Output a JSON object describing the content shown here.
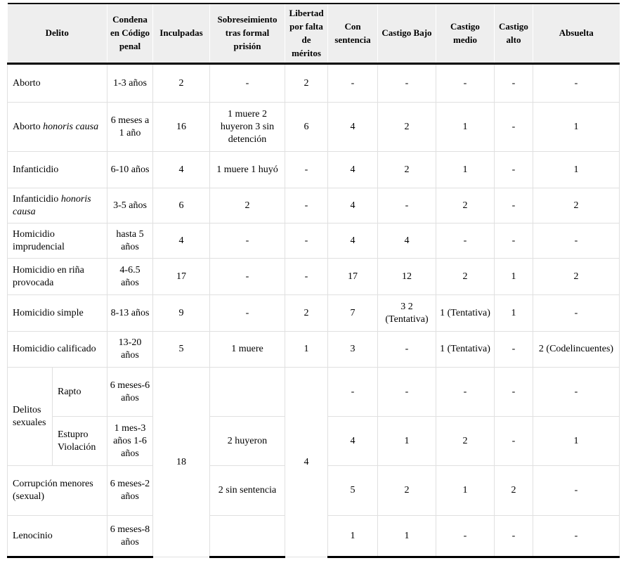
{
  "colors": {
    "header_bg": "#eeeeee",
    "grid_line": "#e0e0e0",
    "rule_heavy": "#000000",
    "text": "#000000"
  },
  "table": {
    "header": [
      {
        "key": "delito",
        "label": "Delito",
        "colspan": 2
      },
      {
        "key": "condena",
        "label": "Condena en Código penal"
      },
      {
        "key": "inculpadas",
        "label": "Inculpadas"
      },
      {
        "key": "sobreseimiento",
        "label": "Sobreseimiento tras formal prisión"
      },
      {
        "key": "libertad",
        "label": "Libertad por falta de méritos"
      },
      {
        "key": "con-sentencia",
        "label": "Con sentencia"
      },
      {
        "key": "castigo-bajo",
        "label": "Castigo Bajo"
      },
      {
        "key": "castigo-medio",
        "label": "Castigo medio"
      },
      {
        "key": "castigo-alto",
        "label": "Castigo alto"
      },
      {
        "key": "absuelta",
        "label": "Absuelta"
      }
    ],
    "rows": [
      {
        "cells": [
          {
            "t": "Aborto",
            "colspan": 2,
            "align": "left",
            "name": "delito-cell"
          },
          {
            "t": "1-3 años"
          },
          {
            "t": "2"
          },
          {
            "t": "-"
          },
          {
            "t": "2"
          },
          {
            "t": "-"
          },
          {
            "t": "-"
          },
          {
            "t": "-"
          },
          {
            "t": "-"
          },
          {
            "t": "-"
          }
        ]
      },
      {
        "cells": [
          {
            "parts": [
              {
                "t": "Aborto "
              },
              {
                "t": "honoris causa",
                "i": 1
              }
            ],
            "colspan": 2,
            "align": "left",
            "name": "delito-cell"
          },
          {
            "t": "6 meses a 1 año"
          },
          {
            "t": "16"
          },
          {
            "t": "1 muere 2 huyeron 3 sin detención"
          },
          {
            "t": "6"
          },
          {
            "t": "4"
          },
          {
            "t": "2"
          },
          {
            "t": "1"
          },
          {
            "t": "-"
          },
          {
            "t": "1"
          }
        ]
      },
      {
        "cells": [
          {
            "t": "Infanticidio",
            "colspan": 2,
            "align": "left",
            "name": "delito-cell"
          },
          {
            "t": "6-10 años"
          },
          {
            "t": "4"
          },
          {
            "t": "1 muere 1 huyó"
          },
          {
            "t": "-"
          },
          {
            "t": "4"
          },
          {
            "t": "2"
          },
          {
            "t": "1"
          },
          {
            "t": "-"
          },
          {
            "t": "1"
          }
        ]
      },
      {
        "cells": [
          {
            "parts": [
              {
                "t": "Infanticidio "
              },
              {
                "t": "honoris causa",
                "i": 1
              }
            ],
            "colspan": 2,
            "align": "left",
            "name": "delito-cell"
          },
          {
            "t": "3-5 años"
          },
          {
            "t": "6"
          },
          {
            "t": "2"
          },
          {
            "t": "-"
          },
          {
            "t": "4"
          },
          {
            "t": "-"
          },
          {
            "t": "2"
          },
          {
            "t": "-"
          },
          {
            "t": "2"
          }
        ]
      },
      {
        "cells": [
          {
            "t": "Homicidio imprudencial",
            "colspan": 2,
            "align": "left",
            "name": "delito-cell"
          },
          {
            "t": "hasta 5 años"
          },
          {
            "t": "4"
          },
          {
            "t": "-"
          },
          {
            "t": "-"
          },
          {
            "t": "4"
          },
          {
            "t": "4"
          },
          {
            "t": "-"
          },
          {
            "t": "-"
          },
          {
            "t": "-"
          }
        ]
      },
      {
        "cells": [
          {
            "t": "Homicidio en riña provocada",
            "colspan": 2,
            "align": "left",
            "name": "delito-cell"
          },
          {
            "t": "4-6.5 años"
          },
          {
            "t": "17"
          },
          {
            "t": "-"
          },
          {
            "t": "-"
          },
          {
            "t": "17"
          },
          {
            "t": "12"
          },
          {
            "t": "2"
          },
          {
            "t": "1"
          },
          {
            "t": "2"
          }
        ]
      },
      {
        "cells": [
          {
            "t": "Homicidio simple",
            "colspan": 2,
            "align": "left",
            "name": "delito-cell"
          },
          {
            "t": "8-13 años"
          },
          {
            "t": "9"
          },
          {
            "t": "-"
          },
          {
            "t": "2"
          },
          {
            "t": "7"
          },
          {
            "t": "3 2 (Tentativa)"
          },
          {
            "t": "1 (Tentativa)"
          },
          {
            "t": "1"
          },
          {
            "t": "-"
          }
        ]
      },
      {
        "cells": [
          {
            "t": "Homicidio calificado",
            "colspan": 2,
            "align": "left",
            "name": "delito-cell"
          },
          {
            "t": "13-20 años"
          },
          {
            "t": "5"
          },
          {
            "t": "1 muere"
          },
          {
            "t": "1"
          },
          {
            "t": "3"
          },
          {
            "t": "-"
          },
          {
            "t": "1 (Tentativa)"
          },
          {
            "t": "-"
          },
          {
            "t": "2 (Codelincuentes)"
          }
        ]
      },
      {
        "cells": [
          {
            "t": "Delitos sexuales",
            "rowspan": 2,
            "align": "left",
            "name": "delito-group-cell"
          },
          {
            "t": "Rapto",
            "align": "left",
            "name": "delito-cell"
          },
          {
            "t": "6 meses-6 años"
          },
          {
            "t": "18",
            "rowspan": 4,
            "name": "merged-inculpadas-cell"
          },
          {
            "t": ""
          },
          {
            "t": "4",
            "rowspan": 4,
            "name": "merged-libertad-cell"
          },
          {
            "t": "-"
          },
          {
            "t": "-"
          },
          {
            "t": "-"
          },
          {
            "t": "-"
          },
          {
            "t": "-"
          }
        ]
      },
      {
        "cells": [
          {
            "t": "Estupro Violación",
            "align": "left",
            "name": "delito-cell"
          },
          {
            "t": "1 mes-3 años 1-6 años"
          },
          {
            "t": "2 huyeron"
          },
          {
            "t": "4"
          },
          {
            "t": "1"
          },
          {
            "t": "2"
          },
          {
            "t": "-"
          },
          {
            "t": "1"
          }
        ]
      },
      {
        "cells": [
          {
            "t": "Corrupción menores (sexual)",
            "colspan": 2,
            "align": "left",
            "name": "delito-cell"
          },
          {
            "t": "6 meses-2 años"
          },
          {
            "t": "2 sin sentencia"
          },
          {
            "t": "5"
          },
          {
            "t": "2"
          },
          {
            "t": "1"
          },
          {
            "t": "2"
          },
          {
            "t": "-"
          }
        ]
      },
      {
        "cells": [
          {
            "t": "Lenocinio",
            "colspan": 2,
            "align": "left",
            "name": "delito-cell"
          },
          {
            "t": "6 meses-8 años"
          },
          {
            "t": ""
          },
          {
            "t": "1"
          },
          {
            "t": "1"
          },
          {
            "t": "-"
          },
          {
            "t": "-"
          },
          {
            "t": "-"
          }
        ]
      }
    ]
  }
}
